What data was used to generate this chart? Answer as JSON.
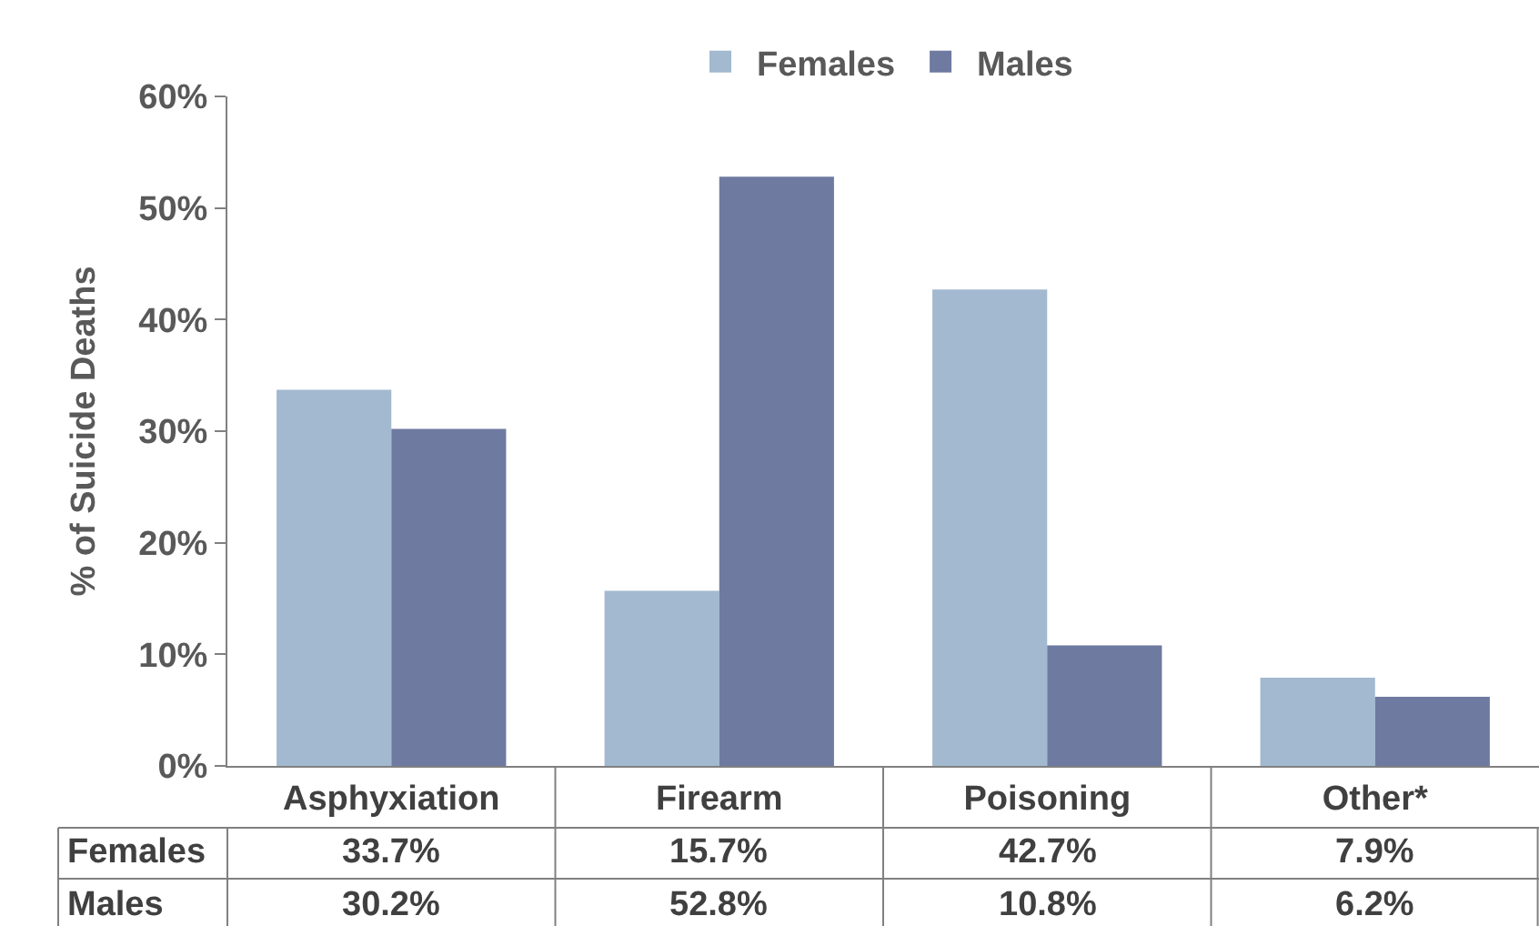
{
  "chart_data": {
    "type": "bar",
    "categories": [
      "Asphyxiation",
      "Firearm",
      "Poisoning",
      "Other*"
    ],
    "series": [
      {
        "name": "Females",
        "color": "#a2b9cf",
        "values": [
          33.7,
          15.7,
          42.7,
          7.9
        ],
        "value_labels": [
          "33.7%",
          "15.7%",
          "42.7%",
          "7.9%"
        ]
      },
      {
        "name": "Males",
        "color": "#6f7aa1",
        "values": [
          30.2,
          52.8,
          10.8,
          6.2
        ],
        "value_labels": [
          "30.2%",
          "52.8%",
          "10.8%",
          "6.2%"
        ]
      }
    ],
    "ylabel": "% of Suicide Deaths",
    "ylim": [
      0,
      60
    ],
    "yticks": [
      {
        "value": 0,
        "label": "0%"
      },
      {
        "value": 10,
        "label": "10%"
      },
      {
        "value": 20,
        "label": "20%"
      },
      {
        "value": 30,
        "label": "30%"
      },
      {
        "value": 40,
        "label": "40%"
      },
      {
        "value": 50,
        "label": "50%"
      },
      {
        "value": 60,
        "label": "60%"
      }
    ],
    "legend": "top"
  }
}
